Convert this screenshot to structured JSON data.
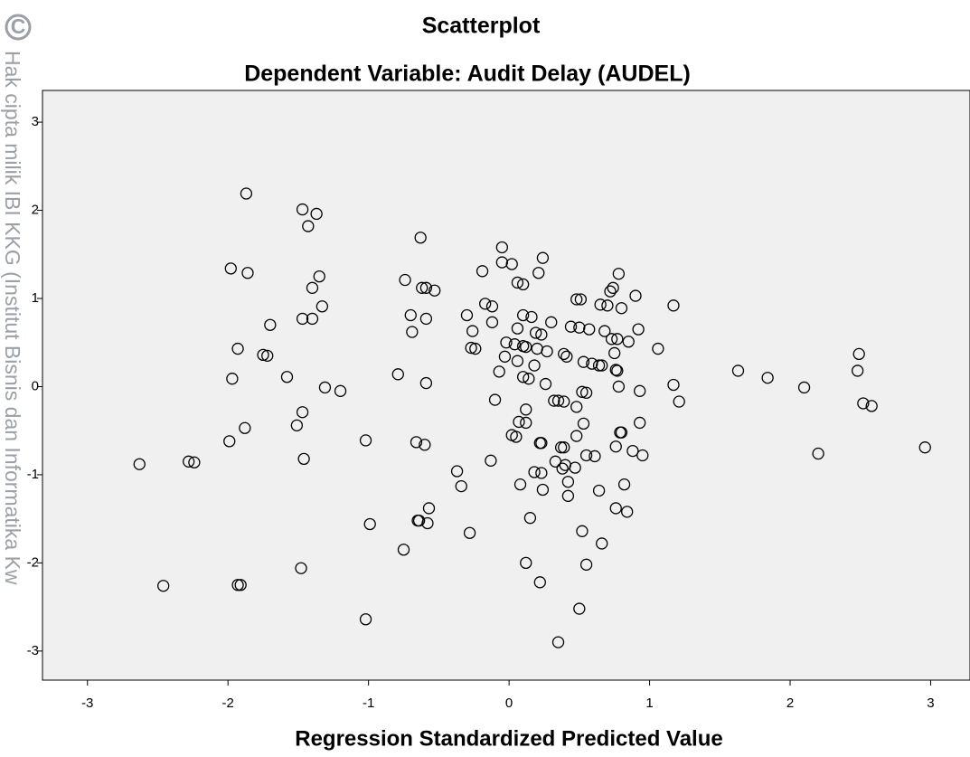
{
  "chart_data": {
    "type": "scatter",
    "title": "Scatterplot",
    "subtitle": "Dependent Variable: Audit Delay (AUDEL)",
    "x_label": "Regression Standardized Predicted Value",
    "watermark_symbol": "C",
    "watermark": "Hak cipta milik IBI KKG (Institut Bisnis dan Informatika Kw",
    "background": "#f0f0f0",
    "marker_color": "#000000",
    "xlim": [
      -3.32,
      3.28
    ],
    "ylim": [
      -3.33,
      3.36
    ],
    "xticks": [
      -3,
      -2,
      -1,
      0,
      1,
      2,
      3
    ],
    "yticks": [
      -3,
      -2,
      -1,
      0,
      1,
      2,
      3
    ],
    "x": [
      -1.87,
      -1.47,
      -1.37,
      -1.43,
      -0.63,
      -0.05,
      -1.98,
      -1.86,
      -0.05,
      0.02,
      0.24,
      -0.19,
      0.21,
      0.78,
      -1.35,
      -0.74,
      -0.62,
      -0.59,
      -0.53,
      0.06,
      0.1,
      -1.4,
      0.74,
      0.72,
      0.48,
      0.51,
      0.9,
      -0.17,
      -0.12,
      0.65,
      0.7,
      1.17,
      0.8,
      -1.33,
      -0.7,
      -0.59,
      -0.3,
      0.1,
      0.16,
      0.3,
      -1.47,
      -1.4,
      -1.7,
      -0.12,
      0.44,
      0.5,
      0.57,
      0.68,
      -0.69,
      -0.26,
      0.06,
      0.19,
      0.23,
      0.92,
      0.73,
      0.77,
      0.85,
      -1.93,
      -0.27,
      -0.24,
      -0.02,
      0.04,
      0.1,
      0.12,
      0.2,
      0.27,
      0.39,
      1.06,
      -1.75,
      -1.72,
      -0.03,
      0.06,
      0.41,
      0.75,
      0.53,
      0.59,
      0.64,
      0.66,
      0.76,
      0.77,
      2.49,
      1.63,
      2.48,
      -0.07,
      0.18,
      -0.79,
      0.1,
      0.14,
      -1.58,
      -1.97,
      1.84,
      -0.59,
      1.17,
      0.78,
      0.26,
      0.52,
      0.55,
      -1.31,
      -1.2,
      2.1,
      0.93,
      -0.1,
      0.32,
      0.35,
      0.39,
      0.48,
      1.21,
      2.52,
      2.58,
      0.12,
      -1.47,
      0.07,
      0.12,
      0.53,
      0.93,
      -1.51,
      -1.88,
      0.02,
      0.05,
      0.48,
      0.79,
      0.8,
      -1.99,
      -1.02,
      -0.66,
      -0.6,
      0.22,
      0.23,
      0.37,
      0.39,
      0.76,
      2.96,
      0.88,
      2.2,
      0.55,
      0.61,
      0.95,
      -1.46,
      -0.13,
      0.33,
      0.4,
      0.38,
      0.47,
      -2.63,
      -2.28,
      -2.24,
      -0.37,
      0.18,
      0.23,
      -0.34,
      0.08,
      0.24,
      0.42,
      0.82,
      0.64,
      0.42,
      -0.57,
      0.76,
      0.84,
      0.15,
      -0.65,
      -0.64,
      -0.58,
      -0.99,
      -0.28,
      0.52,
      -0.75,
      0.66,
      0.12,
      0.55,
      -1.48,
      -2.46,
      -1.93,
      -1.91,
      0.22,
      -1.02,
      0.5,
      0.35
    ],
    "y": [
      2.19,
      2.01,
      1.96,
      1.82,
      1.69,
      1.58,
      1.34,
      1.29,
      1.41,
      1.39,
      1.46,
      1.31,
      1.29,
      1.28,
      1.25,
      1.21,
      1.12,
      1.12,
      1.09,
      1.18,
      1.16,
      1.12,
      1.12,
      1.08,
      0.99,
      0.99,
      1.03,
      0.94,
      0.91,
      0.93,
      0.92,
      0.92,
      0.89,
      0.91,
      0.81,
      0.77,
      0.81,
      0.81,
      0.79,
      0.73,
      0.77,
      0.77,
      0.7,
      0.73,
      0.68,
      0.67,
      0.65,
      0.63,
      0.62,
      0.63,
      0.66,
      0.61,
      0.59,
      0.65,
      0.54,
      0.54,
      0.51,
      0.43,
      0.44,
      0.43,
      0.5,
      0.48,
      0.46,
      0.45,
      0.43,
      0.4,
      0.37,
      0.43,
      0.36,
      0.35,
      0.34,
      0.29,
      0.34,
      0.38,
      0.28,
      0.26,
      0.24,
      0.24,
      0.19,
      0.18,
      0.37,
      0.18,
      0.18,
      0.17,
      0.24,
      0.14,
      0.11,
      0.09,
      0.11,
      0.09,
      0.1,
      0.04,
      0.02,
      0,
      0.03,
      -0.06,
      -0.07,
      -0.01,
      -0.05,
      -0.01,
      -0.05,
      -0.15,
      -0.16,
      -0.16,
      -0.17,
      -0.23,
      -0.17,
      -0.19,
      -0.22,
      -0.26,
      -0.29,
      -0.4,
      -0.41,
      -0.42,
      -0.41,
      -0.44,
      -0.47,
      -0.55,
      -0.57,
      -0.56,
      -0.52,
      -0.52,
      -0.62,
      -0.61,
      -0.63,
      -0.66,
      -0.64,
      -0.64,
      -0.69,
      -0.69,
      -0.68,
      -0.69,
      -0.73,
      -0.76,
      -0.78,
      -0.79,
      -0.78,
      -0.82,
      -0.84,
      -0.85,
      -0.89,
      -0.93,
      -0.92,
      -0.88,
      -0.85,
      -0.86,
      -0.96,
      -0.97,
      -0.98,
      -1.13,
      -1.11,
      -1.17,
      -1.08,
      -1.11,
      -1.18,
      -1.24,
      -1.38,
      -1.38,
      -1.42,
      -1.49,
      -1.52,
      -1.52,
      -1.55,
      -1.56,
      -1.66,
      -1.64,
      -1.85,
      -1.78,
      -2.0,
      -2.02,
      -2.06,
      -2.26,
      -2.25,
      -2.25,
      -2.22,
      -2.64,
      -2.52,
      -2.9
    ]
  }
}
